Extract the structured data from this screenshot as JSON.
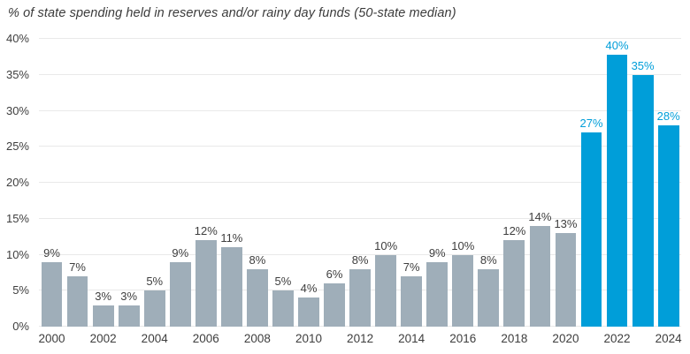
{
  "colors": {
    "bar_default": "#9FAEB9",
    "bar_highlight": "#009ED9",
    "label_text": "#3E3E3E",
    "title_text": "#3B3B3B",
    "gridline": "#E9E9E9"
  },
  "chart_data": {
    "type": "bar",
    "title": "% of state spending held in reserves and/or rainy day funds (50-state median)",
    "xlabel": "",
    "ylabel": "",
    "categories": [
      2000,
      2001,
      2002,
      2003,
      2004,
      2005,
      2006,
      2007,
      2008,
      2009,
      2010,
      2011,
      2012,
      2013,
      2014,
      2015,
      2016,
      2017,
      2018,
      2019,
      2020,
      2021,
      2022,
      2023,
      2024
    ],
    "values": [
      9,
      7,
      3,
      3,
      5,
      9,
      12,
      11,
      8,
      5,
      4,
      6,
      8,
      10,
      7,
      9,
      10,
      8,
      12,
      14,
      13,
      27,
      40,
      35,
      28
    ],
    "bar_labels": [
      "9%",
      "7%",
      "3%",
      "3%",
      "5%",
      "9%",
      "12%",
      "11%",
      "8%",
      "5%",
      "4%",
      "6%",
      "8%",
      "10%",
      "7%",
      "9%",
      "10%",
      "8%",
      "12%",
      "14%",
      "13%",
      "27%",
      "40%",
      "35%",
      "28%"
    ],
    "highlight_categories": [
      2021,
      2022,
      2023,
      2024
    ],
    "ylim": [
      0,
      40
    ],
    "ytick_labels": [
      "0%",
      "5%",
      "10%",
      "15%",
      "20%",
      "25%",
      "30%",
      "35%",
      "40%"
    ],
    "ytick_values": [
      0,
      5,
      10,
      15,
      20,
      25,
      30,
      35,
      40
    ],
    "xtick_labels_shown": [
      2000,
      2002,
      2004,
      2006,
      2008,
      2010,
      2012,
      2014,
      2016,
      2018,
      2020,
      2022,
      2024
    ],
    "grid": true,
    "legend_position": "none"
  }
}
